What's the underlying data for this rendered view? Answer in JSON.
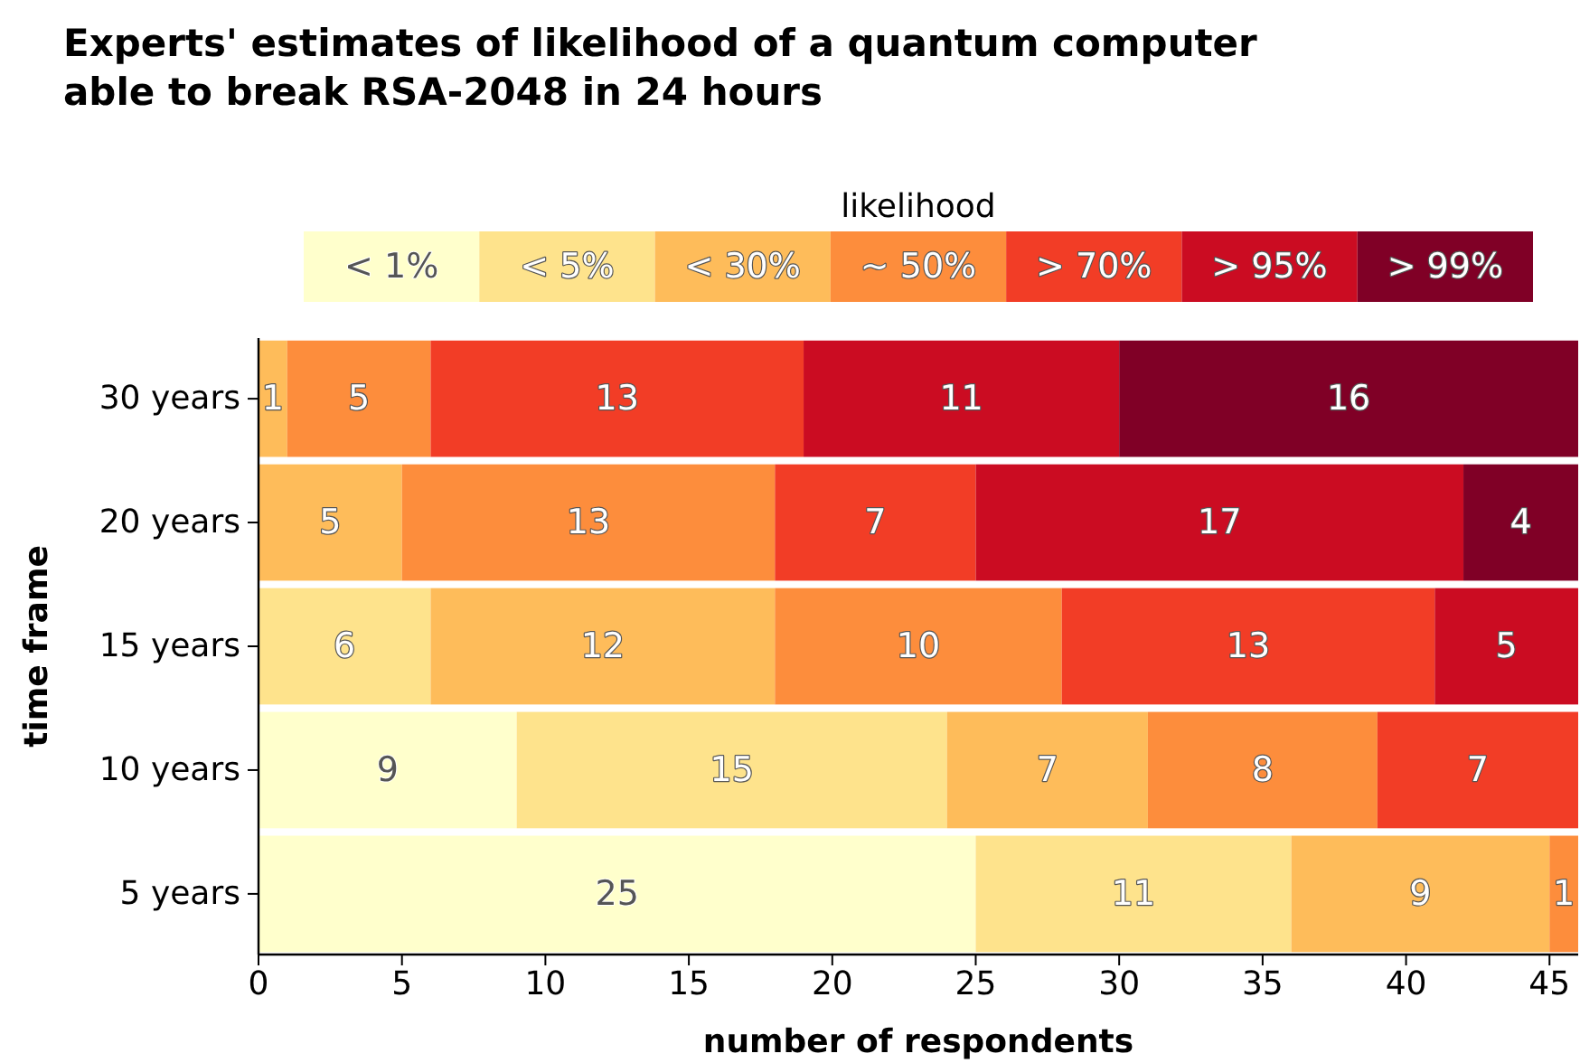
{
  "chart_data": {
    "type": "bar",
    "orientation": "horizontal",
    "stacked": true,
    "title": "Experts' estimates of likelihood of a quantum computer able to break RSA-2048 in 24 hours",
    "xlabel": "number of respondents",
    "ylabel": "time frame",
    "legend_title": "likelihood",
    "legend": "top",
    "grid": false,
    "categories": [
      "30 years",
      "20 years",
      "15 years",
      "10 years",
      "5 years"
    ],
    "xlim": [
      0,
      46
    ],
    "xticks": [
      0,
      5,
      10,
      15,
      20,
      25,
      30,
      35,
      40,
      45
    ],
    "series": [
      {
        "name": "< 1%",
        "color": "#ffffcc",
        "values": [
          0,
          0,
          0,
          9,
          25
        ],
        "value_labels": [
          null,
          null,
          null,
          "9",
          "25"
        ]
      },
      {
        "name": "< 5%",
        "color": "#fee38c",
        "values": [
          0,
          0,
          6,
          15,
          11
        ],
        "value_labels": [
          null,
          null,
          "6",
          "15",
          "11"
        ]
      },
      {
        "name": "< 30%",
        "color": "#febc5a",
        "values": [
          1,
          5,
          12,
          7,
          9
        ],
        "value_labels": [
          "1",
          "5",
          "12",
          "7",
          "9"
        ]
      },
      {
        "name": "~ 50%",
        "color": "#fd8d3c",
        "values": [
          5,
          13,
          10,
          8,
          1
        ],
        "value_labels": [
          "5",
          "13",
          "10",
          "8",
          "1"
        ]
      },
      {
        "name": "> 70%",
        "color": "#f23d26",
        "values": [
          13,
          7,
          13,
          7,
          0
        ],
        "value_labels": [
          "13",
          "7",
          "13",
          "7",
          null
        ]
      },
      {
        "name": "> 95%",
        "color": "#cb0c22",
        "values": [
          11,
          17,
          5,
          0,
          0
        ],
        "value_labels": [
          "11",
          "17",
          "5",
          null,
          null
        ]
      },
      {
        "name": "> 99%",
        "color": "#800026",
        "values": [
          16,
          4,
          0,
          0,
          0
        ],
        "value_labels": [
          "16",
          "4",
          null,
          null,
          null
        ]
      }
    ]
  }
}
